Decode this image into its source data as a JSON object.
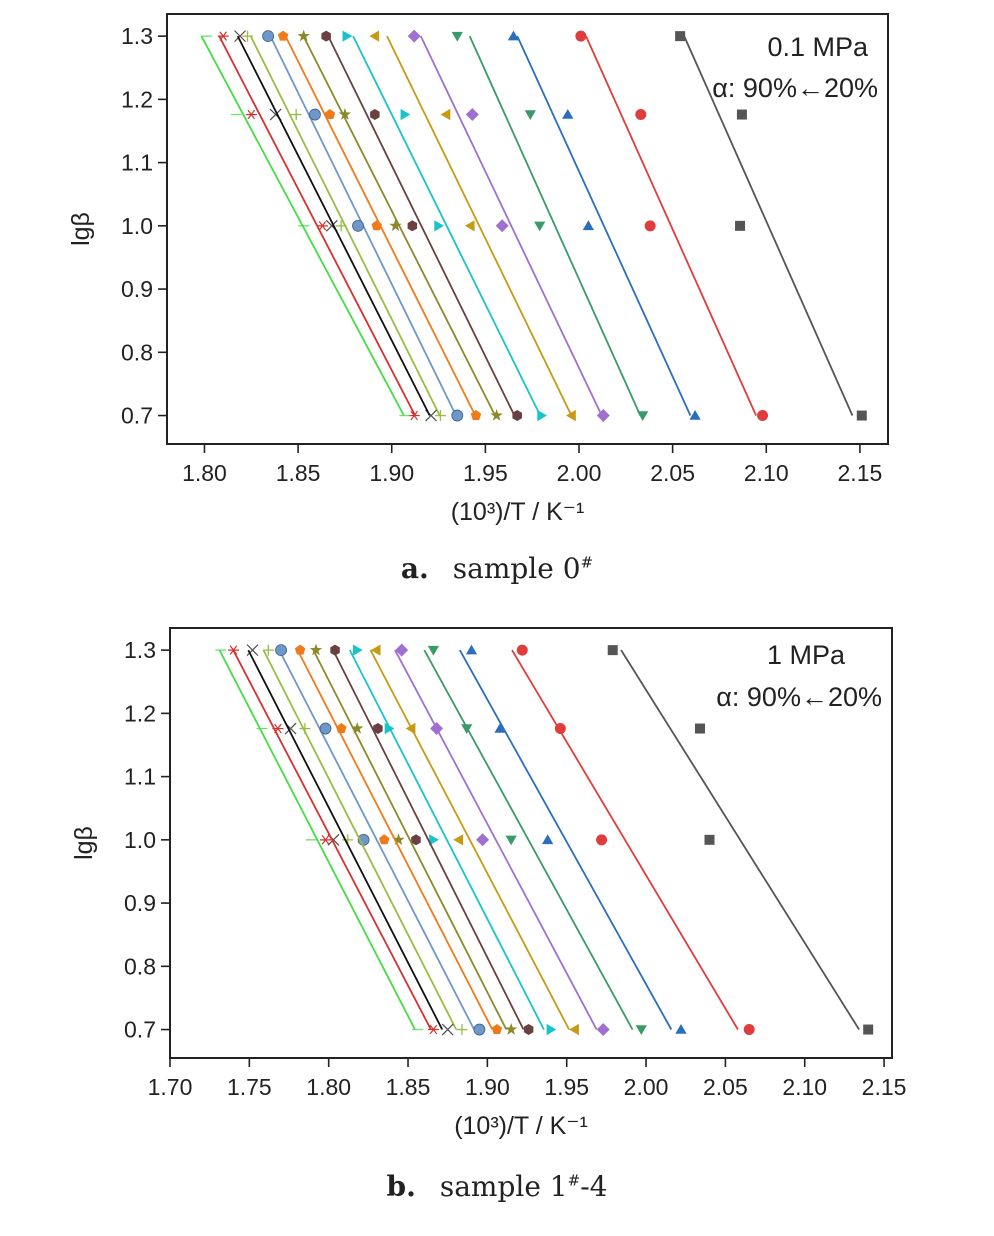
{
  "panels": [
    {
      "caption_letter": "a.",
      "caption_text": "sample 0",
      "caption_sup": "#",
      "caption_suffix": "",
      "annotation_line1": "0.1 MPa",
      "annotation_line2": "α: 90%←20%"
    },
    {
      "caption_letter": "b.",
      "caption_text": "sample 1",
      "caption_sup": "#",
      "caption_suffix": "-4",
      "annotation_line1": "1 MPa",
      "annotation_line2": "α: 90%←20%"
    }
  ],
  "chart_data": [
    {
      "type": "scatter",
      "title": "",
      "xlabel": "(10³)/T / K⁻¹",
      "ylabel": "lgβ",
      "xlim": [
        1.78,
        2.165
      ],
      "ylim": [
        0.655,
        1.335
      ],
      "xticks": [
        1.8,
        1.85,
        1.9,
        1.95,
        2.0,
        2.05,
        2.1,
        2.15
      ],
      "yticks": [
        0.7,
        0.8,
        0.9,
        1.0,
        1.1,
        1.2,
        1.3
      ],
      "y_levels": [
        0.7,
        1.0,
        1.176,
        1.3
      ],
      "series": [
        {
          "color": "#555555",
          "marker": "square",
          "x": [
            2.151,
            2.086,
            2.087,
            2.054
          ]
        },
        {
          "color": "#e03c3c",
          "marker": "circle",
          "x": [
            2.098,
            2.038,
            2.033,
            2.001
          ]
        },
        {
          "color": "#2a6ebd",
          "marker": "triangle",
          "x": [
            2.062,
            2.005,
            1.994,
            1.965
          ]
        },
        {
          "color": "#3a9a68",
          "marker": "tri-down",
          "x": [
            2.034,
            1.979,
            1.974,
            1.935
          ]
        },
        {
          "color": "#a070d0",
          "marker": "diamond",
          "x": [
            2.013,
            1.959,
            1.943,
            1.912
          ]
        },
        {
          "color": "#c79a14",
          "marker": "tri-left",
          "x": [
            1.996,
            1.942,
            1.929,
            1.891
          ]
        },
        {
          "color": "#18c4c8",
          "marker": "tri-right",
          "x": [
            1.98,
            1.925,
            1.907,
            1.876
          ]
        },
        {
          "color": "#6b4040",
          "marker": "hexagon",
          "x": [
            1.967,
            1.911,
            1.891,
            1.865
          ]
        },
        {
          "color": "#8a8a2a",
          "marker": "star",
          "x": [
            1.956,
            1.902,
            1.875,
            1.853
          ]
        },
        {
          "color": "#f07a1a",
          "marker": "pentagon",
          "x": [
            1.945,
            1.892,
            1.867,
            1.842
          ]
        },
        {
          "color": "#6f97c8",
          "marker": "sphere",
          "x": [
            1.935,
            1.882,
            1.859,
            1.834
          ]
        },
        {
          "color": "#9abb44",
          "marker": "plus",
          "x": [
            1.926,
            1.873,
            1.849,
            1.823
          ]
        },
        {
          "color": "#111111",
          "marker": "cross",
          "x": [
            1.921,
            1.868,
            1.838,
            1.819
          ]
        },
        {
          "color": "#d83030",
          "marker": "asterisk",
          "x": [
            1.912,
            1.863,
            1.825,
            1.81
          ]
        },
        {
          "color": "#44dd44",
          "marker": "dash",
          "x": [
            1.907,
            1.853,
            1.817,
            1.801
          ]
        }
      ]
    },
    {
      "type": "scatter",
      "title": "",
      "xlabel": "(10³)/T / K⁻¹",
      "ylabel": "lgβ",
      "xlim": [
        1.7,
        2.155
      ],
      "ylim": [
        0.655,
        1.335
      ],
      "xticks": [
        1.7,
        1.75,
        1.8,
        1.85,
        1.9,
        1.95,
        2.0,
        2.05,
        2.1,
        2.15
      ],
      "yticks": [
        0.7,
        0.8,
        0.9,
        1.0,
        1.1,
        1.2,
        1.3
      ],
      "y_levels": [
        0.7,
        1.0,
        1.176,
        1.3
      ],
      "series": [
        {
          "color": "#555555",
          "marker": "square",
          "x": [
            2.14,
            2.04,
            2.034,
            1.979
          ]
        },
        {
          "color": "#e03c3c",
          "marker": "circle",
          "x": [
            2.065,
            1.972,
            1.946,
            1.922
          ]
        },
        {
          "color": "#2a6ebd",
          "marker": "triangle",
          "x": [
            2.022,
            1.938,
            1.908,
            1.89
          ]
        },
        {
          "color": "#3a9a68",
          "marker": "tri-down",
          "x": [
            1.997,
            1.915,
            1.887,
            1.866
          ]
        },
        {
          "color": "#a070d0",
          "marker": "diamond",
          "x": [
            1.973,
            1.897,
            1.868,
            1.846
          ]
        },
        {
          "color": "#c79a14",
          "marker": "tri-left",
          "x": [
            1.955,
            1.882,
            1.852,
            1.83
          ]
        },
        {
          "color": "#18c4c8",
          "marker": "tri-right",
          "x": [
            1.94,
            1.866,
            1.838,
            1.818
          ]
        },
        {
          "color": "#6b4040",
          "marker": "hexagon",
          "x": [
            1.926,
            1.855,
            1.831,
            1.804
          ]
        },
        {
          "color": "#8a8a2a",
          "marker": "star",
          "x": [
            1.915,
            1.844,
            1.818,
            1.792
          ]
        },
        {
          "color": "#f07a1a",
          "marker": "pentagon",
          "x": [
            1.906,
            1.835,
            1.808,
            1.782
          ]
        },
        {
          "color": "#6f97c8",
          "marker": "sphere",
          "x": [
            1.895,
            1.822,
            1.798,
            1.77
          ]
        },
        {
          "color": "#9abb44",
          "marker": "plus",
          "x": [
            1.884,
            1.812,
            1.785,
            1.762
          ]
        },
        {
          "color": "#111111",
          "marker": "cross",
          "x": [
            1.875,
            1.803,
            1.776,
            1.752
          ]
        },
        {
          "color": "#d83030",
          "marker": "asterisk",
          "x": [
            1.866,
            1.798,
            1.768,
            1.74
          ]
        },
        {
          "color": "#44dd44",
          "marker": "dash",
          "x": [
            1.856,
            1.789,
            1.758,
            1.732
          ]
        }
      ]
    }
  ]
}
